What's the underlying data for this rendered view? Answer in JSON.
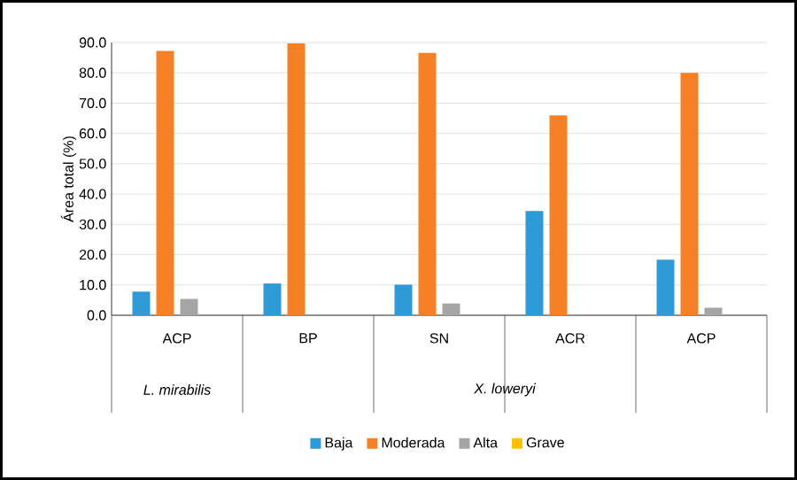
{
  "chart_data": {
    "type": "bar",
    "ylabel": "Área total (%)",
    "categories": [
      "ACP",
      "BP",
      "SN",
      "ACR",
      "ACP"
    ],
    "series": [
      {
        "name": "Baja",
        "color": "#2e9bd6",
        "values": [
          7.8,
          10.5,
          10.1,
          34.4,
          18.3
        ]
      },
      {
        "name": "Moderada",
        "color": "#f58025",
        "values": [
          87.2,
          89.7,
          86.6,
          66.0,
          80.0
        ]
      },
      {
        "name": "Alta",
        "color": "#a5a5a5",
        "values": [
          5.4,
          0,
          3.9,
          0,
          2.5
        ]
      },
      {
        "name": "Grave",
        "color": "#ffc000",
        "values": [
          0,
          0,
          0,
          0,
          0
        ]
      }
    ],
    "ylim": [
      0,
      90
    ],
    "yticks": [
      {
        "value": 0,
        "label": "0.0"
      },
      {
        "value": 10,
        "label": "10.0"
      },
      {
        "value": 20,
        "label": "20.0"
      },
      {
        "value": 30,
        "label": "30.0"
      },
      {
        "value": 40,
        "label": "40.0"
      },
      {
        "value": 50,
        "label": "50.0"
      },
      {
        "value": 60,
        "label": "60.0"
      },
      {
        "value": 70,
        "label": "70.0"
      },
      {
        "value": 80,
        "label": "80.0"
      },
      {
        "value": 90,
        "label": "90.0"
      }
    ],
    "annotations": [
      "L. mirabilis",
      "X. loweryi"
    ],
    "grid": "y",
    "legend": "bottom"
  }
}
